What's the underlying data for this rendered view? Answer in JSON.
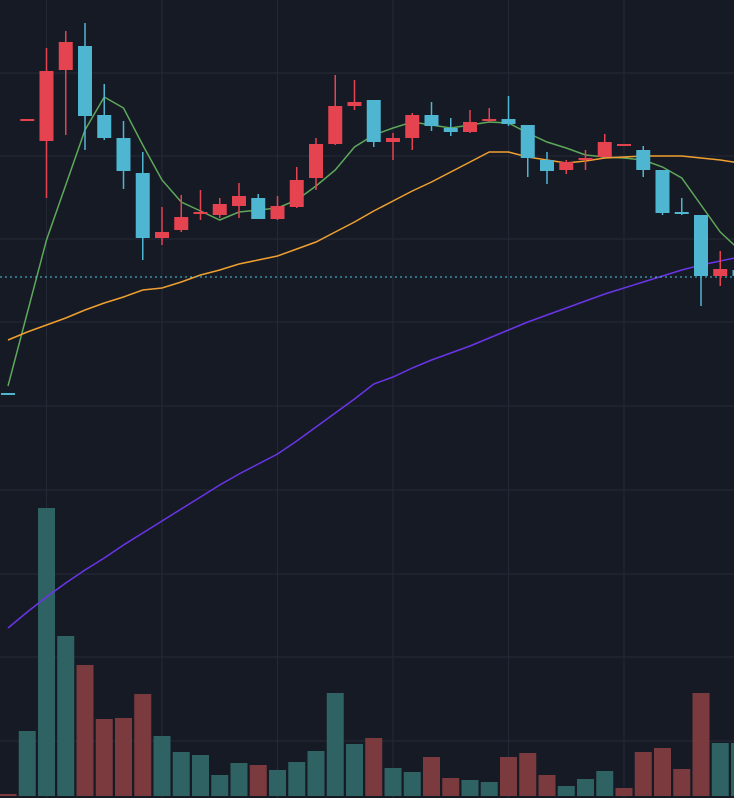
{
  "chart_data": {
    "type": "candlestick",
    "open": [
      407,
      680,
      659,
      730,
      754,
      685,
      662,
      627,
      562,
      570,
      586,
      585,
      594,
      602,
      581,
      593,
      622,
      656,
      694,
      700,
      658,
      662,
      685,
      672,
      668,
      680,
      681,
      675,
      640,
      630,
      641,
      643,
      655,
      650,
      630,
      588,
      585,
      524,
      530
    ],
    "high": [
      407,
      681,
      752,
      769,
      777,
      716,
      679,
      648,
      593,
      605,
      610,
      602,
      617,
      606,
      604,
      633,
      662,
      725,
      720,
      700,
      667,
      687,
      698,
      682,
      690,
      692,
      704,
      675,
      648,
      640,
      650,
      666,
      656,
      654,
      630,
      602,
      585,
      549,
      532
    ],
    "low": [
      405,
      680,
      602,
      665,
      650,
      660,
      611,
      540,
      555,
      568,
      580,
      582,
      582,
      581,
      580,
      592,
      610,
      655,
      690,
      653,
      640,
      650,
      669,
      664,
      667,
      678,
      674,
      623,
      616,
      626,
      630,
      643,
      655,
      623,
      585,
      585,
      494,
      514,
      522
    ],
    "close": [
      405,
      681,
      729,
      758,
      684,
      662,
      629,
      562,
      568,
      583,
      588,
      596,
      604,
      581,
      594,
      620,
      656,
      694,
      698,
      658,
      662,
      685,
      674,
      668,
      678,
      681,
      676,
      642,
      629,
      638,
      642,
      658,
      656,
      630,
      587,
      587,
      524,
      531,
      524
    ],
    "up_color": "#e5434f",
    "down_color": "#4fb6d2",
    "ylim": [
      0,
      800
    ],
    "grid_y": [
      727,
      644,
      561,
      478,
      394,
      310,
      226,
      143,
      59
    ],
    "grid_x": [
      2,
      8,
      14,
      20,
      26,
      32
    ],
    "price_line": {
      "value": 523,
      "color": "#4fc8e0"
    },
    "lines": [
      {
        "color": "#5ea85a",
        "values": [
          414,
          487,
          560,
          615,
          670,
          703,
          692,
          655,
          620,
          598,
          589,
          580,
          588,
          590,
          592,
          600,
          614,
          630,
          653,
          665,
          672,
          678,
          675,
          672,
          675,
          678,
          677,
          667,
          658,
          652,
          645,
          643,
          642,
          640,
          633,
          622,
          595,
          568,
          550
        ]
      },
      {
        "color": "#f0a030",
        "values": [
          460,
          468,
          475,
          482,
          490,
          497,
          503,
          510,
          512,
          518,
          525,
          530,
          536,
          540,
          544,
          551,
          558,
          568,
          578,
          589,
          599,
          609,
          618,
          628,
          638,
          648,
          648,
          643,
          640,
          637,
          639,
          642,
          643,
          644,
          644,
          644,
          642,
          640,
          637
        ]
      },
      {
        "color": "#6a35e8",
        "values": [
          172,
          188,
          203,
          217,
          230,
          242,
          255,
          267,
          279,
          291,
          303,
          315,
          326,
          336,
          346,
          359,
          373,
          387,
          401,
          416,
          423,
          432,
          440,
          447,
          454,
          462,
          470,
          478,
          485,
          492,
          499,
          506,
          512,
          518,
          524,
          530,
          535,
          539,
          543
        ]
      }
    ],
    "volume": {
      "ylim": [
        0,
        796
      ],
      "values": [
        2,
        65,
        288,
        160,
        131,
        77,
        78,
        102,
        60,
        44,
        41,
        21,
        33,
        31,
        26,
        34,
        45,
        103,
        52,
        58,
        28,
        24,
        39,
        18,
        16,
        14,
        39,
        43,
        21,
        10,
        17,
        25,
        8,
        44,
        48,
        27,
        103,
        53,
        53
      ],
      "colors": [
        "#7b3b3e",
        "#2f6262",
        "#2f6262",
        "#2f6262",
        "#7b3b3e",
        "#7b3b3e",
        "#7b3b3e",
        "#7b3b3e",
        "#2f6262",
        "#2f6262",
        "#2f6262",
        "#2f6262",
        "#2f6262",
        "#7b3b3e",
        "#2f6262",
        "#2f6262",
        "#2f6262",
        "#2f6262",
        "#2f6262",
        "#7b3b3e",
        "#2f6262",
        "#2f6262",
        "#7b3b3e",
        "#7b3b3e",
        "#2f6262",
        "#2f6262",
        "#7b3b3e",
        "#7b3b3e",
        "#7b3b3e",
        "#2f6262",
        "#2f6262",
        "#2f6262",
        "#7b3b3e",
        "#7b3b3e",
        "#7b3b3e",
        "#7b3b3e",
        "#7b3b3e",
        "#2f6262",
        "#2f6262"
      ]
    }
  }
}
